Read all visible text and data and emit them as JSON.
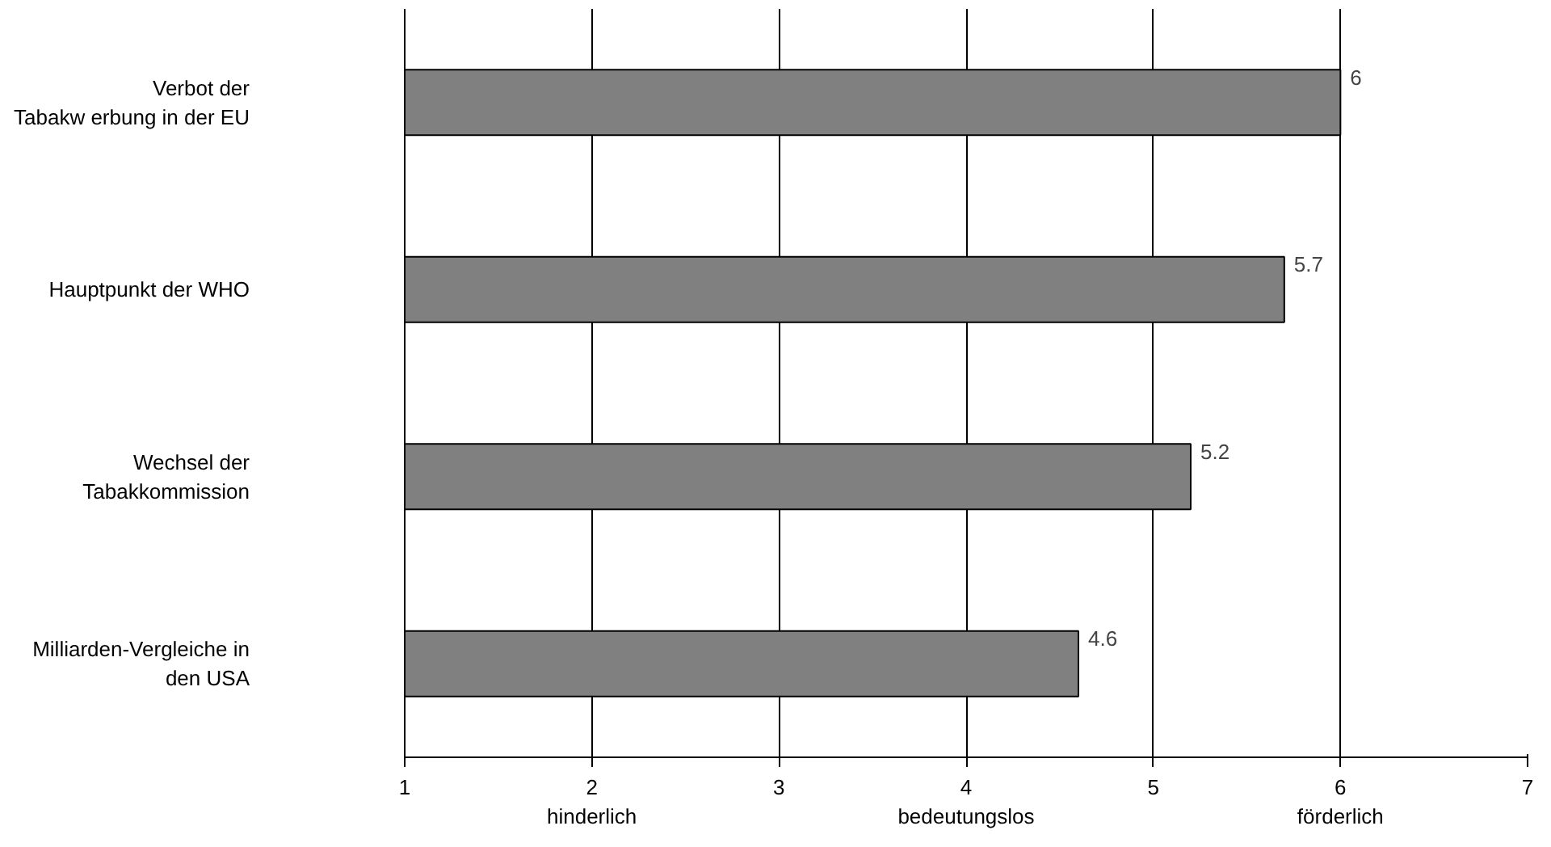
{
  "chart_data": {
    "type": "bar",
    "orientation": "horizontal",
    "categories": [
      "Verbot der\nTabakw erbung in der EU",
      "Hauptpunkt der WHO",
      "Wechsel der\nTabakkommission",
      "Milliarden-Vergleiche in\nden USA"
    ],
    "values": [
      6,
      5.7,
      5.2,
      4.6
    ],
    "color": "#808080",
    "data_labels": true,
    "xlim": [
      1,
      7
    ],
    "xticks": [
      1,
      {
        "value": 2,
        "label": "2\nhinderlich"
      },
      3,
      {
        "value": 4,
        "label": "4\nbedeutungslos"
      },
      5,
      {
        "value": 6,
        "label": "6\nförderlich"
      },
      7
    ],
    "grid": "x"
  }
}
